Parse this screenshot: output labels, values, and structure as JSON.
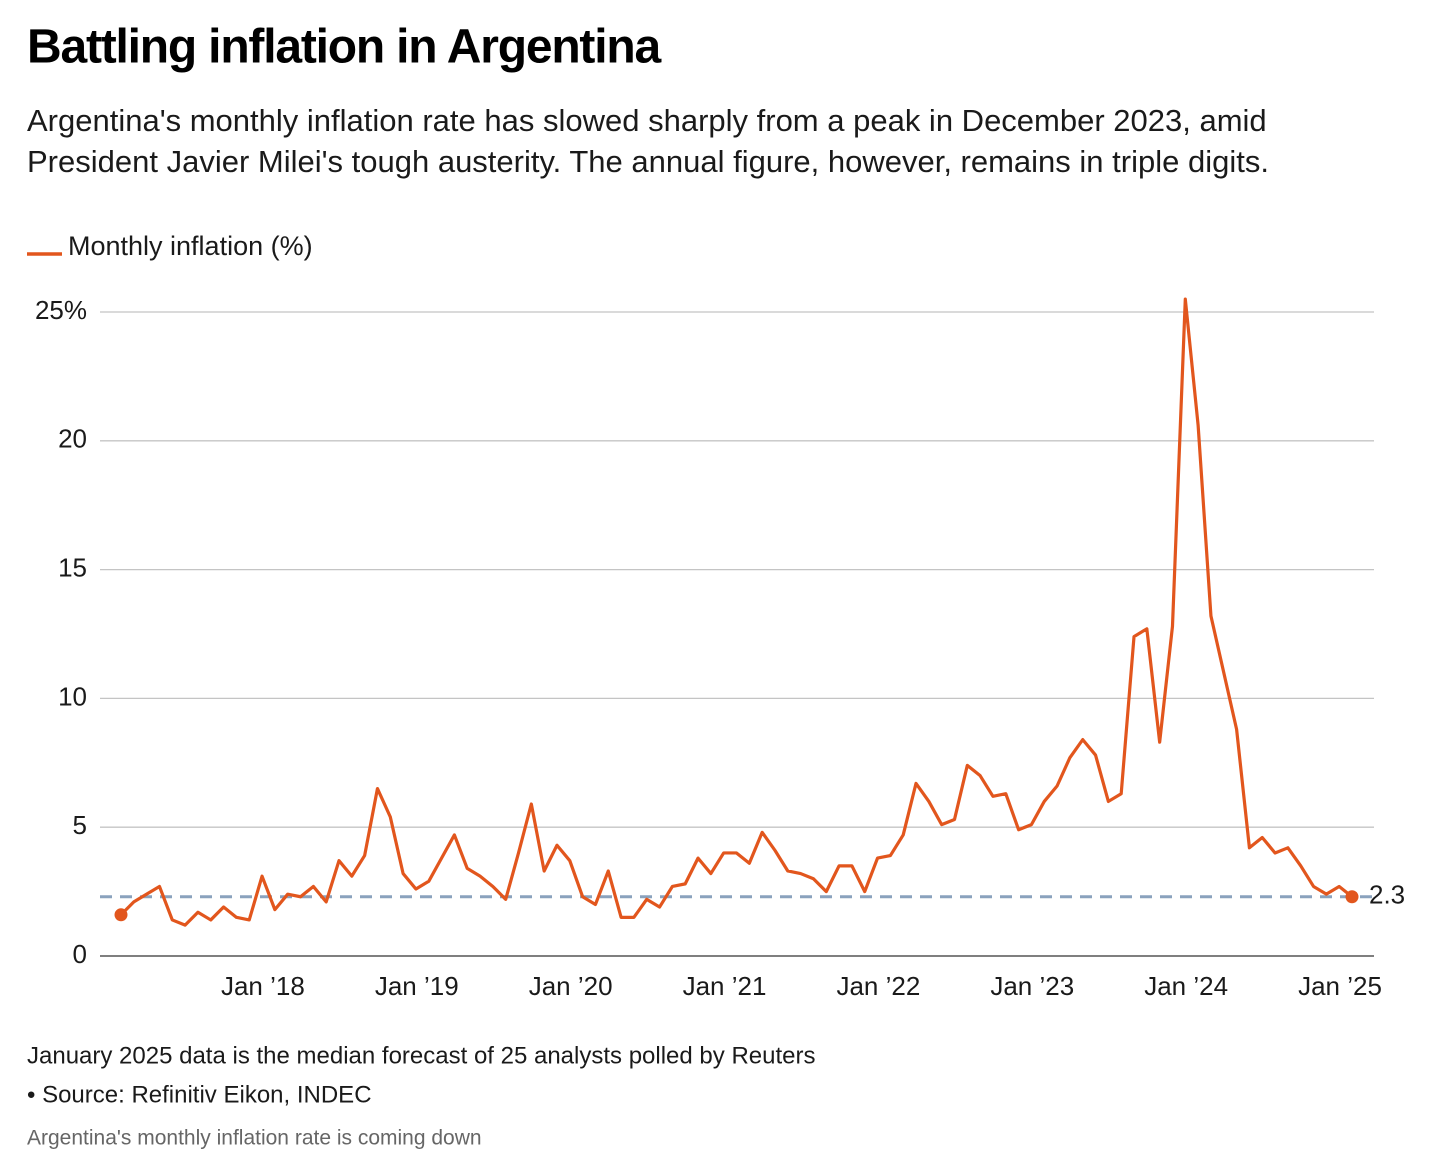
{
  "chart_data": {
    "type": "line",
    "title": "Battling inflation in Argentina",
    "subtitle": [
      "Argentina's monthly inflation rate has slowed sharply from a peak in December 2023, amid",
      "President Javier Milei's tough austerity. The annual figure, however, remains in triple digits."
    ],
    "note": "January 2025 data is the median forecast of 25 analysts polled by Reuters",
    "source": "• Source: Refinitiv Eikon, INDEC",
    "caption": "Argentina's monthly inflation rate is coming down",
    "x": [
      "2017-01",
      "2017-02",
      "2017-03",
      "2017-04",
      "2017-05",
      "2017-06",
      "2017-07",
      "2017-08",
      "2017-09",
      "2017-10",
      "2017-11",
      "2017-12",
      "2018-01",
      "2018-02",
      "2018-03",
      "2018-04",
      "2018-05",
      "2018-06",
      "2018-07",
      "2018-08",
      "2018-09",
      "2018-10",
      "2018-11",
      "2018-12",
      "2019-01",
      "2019-02",
      "2019-03",
      "2019-04",
      "2019-05",
      "2019-06",
      "2019-07",
      "2019-08",
      "2019-09",
      "2019-10",
      "2019-11",
      "2019-12",
      "2020-01",
      "2020-02",
      "2020-03",
      "2020-04",
      "2020-05",
      "2020-06",
      "2020-07",
      "2020-08",
      "2020-09",
      "2020-10",
      "2020-11",
      "2020-12",
      "2021-01",
      "2021-02",
      "2021-03",
      "2021-04",
      "2021-05",
      "2021-06",
      "2021-07",
      "2021-08",
      "2021-09",
      "2021-10",
      "2021-11",
      "2021-12",
      "2022-01",
      "2022-02",
      "2022-03",
      "2022-04",
      "2022-05",
      "2022-06",
      "2022-07",
      "2022-08",
      "2022-09",
      "2022-10",
      "2022-11",
      "2022-12",
      "2023-01",
      "2023-02",
      "2023-03",
      "2023-04",
      "2023-05",
      "2023-06",
      "2023-07",
      "2023-08",
      "2023-09",
      "2023-10",
      "2023-11",
      "2023-12",
      "2024-01",
      "2024-02",
      "2024-03",
      "2024-04",
      "2024-05",
      "2024-06",
      "2024-07",
      "2024-08",
      "2024-09",
      "2024-10",
      "2024-11",
      "2024-12",
      "2025-01"
    ],
    "series": [
      {
        "name": "Monthly inflation (%)",
        "color": "#e2561d",
        "values": [
          1.6,
          2.1,
          2.4,
          2.7,
          1.4,
          1.2,
          1.7,
          1.4,
          1.9,
          1.5,
          1.4,
          3.1,
          1.8,
          2.4,
          2.3,
          2.7,
          2.1,
          3.7,
          3.1,
          3.9,
          6.5,
          5.4,
          3.2,
          2.6,
          2.9,
          3.8,
          4.7,
          3.4,
          3.1,
          2.7,
          2.2,
          4.0,
          5.9,
          3.3,
          4.3,
          3.7,
          2.3,
          2.0,
          3.3,
          1.5,
          1.5,
          2.2,
          1.9,
          2.7,
          2.8,
          3.8,
          3.2,
          4.0,
          4.0,
          3.6,
          4.8,
          4.1,
          3.3,
          3.2,
          3.0,
          2.5,
          3.5,
          3.5,
          2.5,
          3.8,
          3.9,
          4.7,
          6.7,
          6.0,
          5.1,
          5.3,
          7.4,
          7.0,
          6.2,
          6.3,
          4.9,
          5.1,
          6.0,
          6.6,
          7.7,
          8.4,
          7.8,
          6.0,
          6.3,
          12.4,
          12.7,
          8.3,
          12.8,
          25.5,
          20.6,
          13.2,
          11.0,
          8.8,
          4.2,
          4.6,
          4.0,
          4.2,
          3.5,
          2.7,
          2.4,
          2.7,
          2.3
        ]
      }
    ],
    "reference_line": 2.3,
    "reference_color": "#8aa2bd",
    "xlim": [
      "2017-01",
      "2025-01"
    ],
    "xticks": [
      {
        "value": "2018-01",
        "label": "Jan ’18"
      },
      {
        "value": "2019-01",
        "label": "Jan ’19"
      },
      {
        "value": "2020-01",
        "label": "Jan ’20"
      },
      {
        "value": "2021-01",
        "label": "Jan ’21"
      },
      {
        "value": "2022-01",
        "label": "Jan ’22"
      },
      {
        "value": "2023-01",
        "label": "Jan ’23"
      },
      {
        "value": "2024-01",
        "label": "Jan ’24"
      },
      {
        "value": "2025-01",
        "label": "Jan ’25"
      }
    ],
    "ylim": [
      0,
      26
    ],
    "yticks": [
      0,
      5,
      10,
      15,
      20,
      {
        "value": 25,
        "label": "25%"
      }
    ],
    "grid": true
  }
}
